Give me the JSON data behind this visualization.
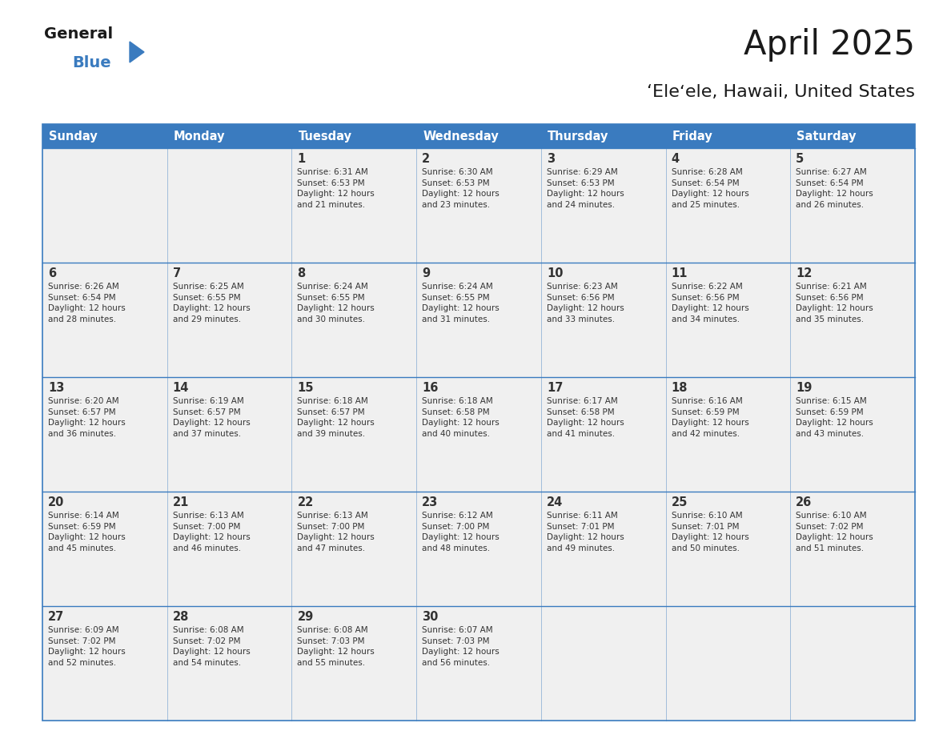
{
  "title": "April 2025",
  "subtitle": "‘Eleʻele, Hawaii, United States",
  "header_bg": "#3a7bbf",
  "header_text_color": "#ffffff",
  "cell_bg": "#f0f0f0",
  "border_color": "#3a7bbf",
  "text_color": "#333333",
  "days_of_week": [
    "Sunday",
    "Monday",
    "Tuesday",
    "Wednesday",
    "Thursday",
    "Friday",
    "Saturday"
  ],
  "weeks": [
    [
      {
        "day": "",
        "info": ""
      },
      {
        "day": "",
        "info": ""
      },
      {
        "day": "1",
        "info": "Sunrise: 6:31 AM\nSunset: 6:53 PM\nDaylight: 12 hours\nand 21 minutes."
      },
      {
        "day": "2",
        "info": "Sunrise: 6:30 AM\nSunset: 6:53 PM\nDaylight: 12 hours\nand 23 minutes."
      },
      {
        "day": "3",
        "info": "Sunrise: 6:29 AM\nSunset: 6:53 PM\nDaylight: 12 hours\nand 24 minutes."
      },
      {
        "day": "4",
        "info": "Sunrise: 6:28 AM\nSunset: 6:54 PM\nDaylight: 12 hours\nand 25 minutes."
      },
      {
        "day": "5",
        "info": "Sunrise: 6:27 AM\nSunset: 6:54 PM\nDaylight: 12 hours\nand 26 minutes."
      }
    ],
    [
      {
        "day": "6",
        "info": "Sunrise: 6:26 AM\nSunset: 6:54 PM\nDaylight: 12 hours\nand 28 minutes."
      },
      {
        "day": "7",
        "info": "Sunrise: 6:25 AM\nSunset: 6:55 PM\nDaylight: 12 hours\nand 29 minutes."
      },
      {
        "day": "8",
        "info": "Sunrise: 6:24 AM\nSunset: 6:55 PM\nDaylight: 12 hours\nand 30 minutes."
      },
      {
        "day": "9",
        "info": "Sunrise: 6:24 AM\nSunset: 6:55 PM\nDaylight: 12 hours\nand 31 minutes."
      },
      {
        "day": "10",
        "info": "Sunrise: 6:23 AM\nSunset: 6:56 PM\nDaylight: 12 hours\nand 33 minutes."
      },
      {
        "day": "11",
        "info": "Sunrise: 6:22 AM\nSunset: 6:56 PM\nDaylight: 12 hours\nand 34 minutes."
      },
      {
        "day": "12",
        "info": "Sunrise: 6:21 AM\nSunset: 6:56 PM\nDaylight: 12 hours\nand 35 minutes."
      }
    ],
    [
      {
        "day": "13",
        "info": "Sunrise: 6:20 AM\nSunset: 6:57 PM\nDaylight: 12 hours\nand 36 minutes."
      },
      {
        "day": "14",
        "info": "Sunrise: 6:19 AM\nSunset: 6:57 PM\nDaylight: 12 hours\nand 37 minutes."
      },
      {
        "day": "15",
        "info": "Sunrise: 6:18 AM\nSunset: 6:57 PM\nDaylight: 12 hours\nand 39 minutes."
      },
      {
        "day": "16",
        "info": "Sunrise: 6:18 AM\nSunset: 6:58 PM\nDaylight: 12 hours\nand 40 minutes."
      },
      {
        "day": "17",
        "info": "Sunrise: 6:17 AM\nSunset: 6:58 PM\nDaylight: 12 hours\nand 41 minutes."
      },
      {
        "day": "18",
        "info": "Sunrise: 6:16 AM\nSunset: 6:59 PM\nDaylight: 12 hours\nand 42 minutes."
      },
      {
        "day": "19",
        "info": "Sunrise: 6:15 AM\nSunset: 6:59 PM\nDaylight: 12 hours\nand 43 minutes."
      }
    ],
    [
      {
        "day": "20",
        "info": "Sunrise: 6:14 AM\nSunset: 6:59 PM\nDaylight: 12 hours\nand 45 minutes."
      },
      {
        "day": "21",
        "info": "Sunrise: 6:13 AM\nSunset: 7:00 PM\nDaylight: 12 hours\nand 46 minutes."
      },
      {
        "day": "22",
        "info": "Sunrise: 6:13 AM\nSunset: 7:00 PM\nDaylight: 12 hours\nand 47 minutes."
      },
      {
        "day": "23",
        "info": "Sunrise: 6:12 AM\nSunset: 7:00 PM\nDaylight: 12 hours\nand 48 minutes."
      },
      {
        "day": "24",
        "info": "Sunrise: 6:11 AM\nSunset: 7:01 PM\nDaylight: 12 hours\nand 49 minutes."
      },
      {
        "day": "25",
        "info": "Sunrise: 6:10 AM\nSunset: 7:01 PM\nDaylight: 12 hours\nand 50 minutes."
      },
      {
        "day": "26",
        "info": "Sunrise: 6:10 AM\nSunset: 7:02 PM\nDaylight: 12 hours\nand 51 minutes."
      }
    ],
    [
      {
        "day": "27",
        "info": "Sunrise: 6:09 AM\nSunset: 7:02 PM\nDaylight: 12 hours\nand 52 minutes."
      },
      {
        "day": "28",
        "info": "Sunrise: 6:08 AM\nSunset: 7:02 PM\nDaylight: 12 hours\nand 54 minutes."
      },
      {
        "day": "29",
        "info": "Sunrise: 6:08 AM\nSunset: 7:03 PM\nDaylight: 12 hours\nand 55 minutes."
      },
      {
        "day": "30",
        "info": "Sunrise: 6:07 AM\nSunset: 7:03 PM\nDaylight: 12 hours\nand 56 minutes."
      },
      {
        "day": "",
        "info": ""
      },
      {
        "day": "",
        "info": ""
      },
      {
        "day": "",
        "info": ""
      }
    ]
  ]
}
